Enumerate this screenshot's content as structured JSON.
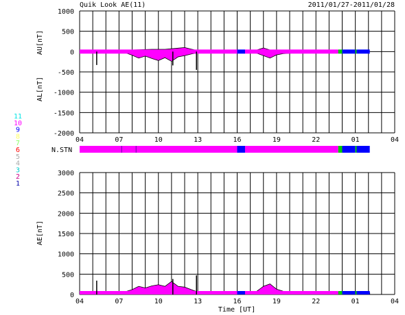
{
  "header": {
    "title": "Quik Look AE(11)",
    "date_range": "2011/01/27-2011/01/28"
  },
  "colors": {
    "magenta": "#ff00ff",
    "blue": "#0000ff",
    "green": "#00cc00",
    "black": "#000000"
  },
  "legend": {
    "items": [
      {
        "label": "11",
        "color": "#00e5e5"
      },
      {
        "label": "10",
        "color": "#ff00ff"
      },
      {
        "label": "9",
        "color": "#0000ff"
      },
      {
        "label": "8",
        "color": "#ffff66"
      },
      {
        "label": "7",
        "color": "#88ff66"
      },
      {
        "label": "6",
        "color": "#ff0000"
      },
      {
        "label": "5",
        "color": "#aaaaaa"
      },
      {
        "label": "4",
        "color": "#aaaaaa"
      },
      {
        "label": "3",
        "color": "#00cccc"
      },
      {
        "label": "2",
        "color": "#cc0088"
      },
      {
        "label": "1",
        "color": "#0000aa"
      }
    ]
  },
  "chart_data": [
    {
      "type": "area",
      "id": "au_al",
      "ylabel_top": "AU[nT]",
      "ylabel_bottom": "AL[nT]",
      "ylim": [
        -2000,
        1000
      ],
      "yticks": [
        1000,
        500,
        0,
        -500,
        -1000,
        -1500,
        -2000
      ],
      "xlim": [
        4,
        28
      ],
      "xtick_labels": [
        "04",
        "07",
        "10",
        "13",
        "16",
        "19",
        "22",
        "01",
        "04"
      ],
      "grid": true,
      "au": {
        "x": [
          4.0,
          6.0,
          7.5,
          8.5,
          9.5,
          10.5,
          11.0,
          11.5,
          12.0,
          12.5,
          13.0,
          14.0,
          16.0,
          17.5,
          18.0,
          18.5,
          19.5,
          21.0,
          22.0,
          23.5,
          25.0
        ],
        "y": [
          25,
          25,
          35,
          45,
          55,
          55,
          70,
          85,
          100,
          60,
          25,
          25,
          30,
          40,
          90,
          40,
          25,
          30,
          30,
          30,
          30
        ]
      },
      "al": {
        "x": [
          4.0,
          5.0,
          6.0,
          7.5,
          8.0,
          8.5,
          9.0,
          9.5,
          10.0,
          10.5,
          11.0,
          11.5,
          12.0,
          12.5,
          13.0,
          14.0,
          16.0,
          17.5,
          18.0,
          18.5,
          19.0,
          19.5,
          20.0,
          21.0,
          22.0,
          23.5,
          25.0
        ],
        "y": [
          -20,
          -25,
          -20,
          -30,
          -90,
          -160,
          -110,
          -170,
          -220,
          -150,
          -240,
          -130,
          -100,
          -60,
          -30,
          -20,
          -15,
          -40,
          -100,
          -160,
          -80,
          -50,
          -40,
          -30,
          -25,
          -20,
          -15
        ]
      },
      "spikes": [
        {
          "x": 5.3,
          "y": -330
        },
        {
          "x": 11.1,
          "y": -340
        },
        {
          "x": 12.9,
          "y": -450
        }
      ],
      "bands": [
        {
          "from": 4.0,
          "to": 16.0,
          "color": "#ff00ff"
        },
        {
          "from": 16.0,
          "to": 16.6,
          "color": "#0000ff"
        },
        {
          "from": 16.6,
          "to": 23.7,
          "color": "#ff00ff"
        },
        {
          "from": 23.7,
          "to": 24.0,
          "color": "#00cc00"
        },
        {
          "from": 24.0,
          "to": 25.0,
          "color": "#0000ff"
        },
        {
          "from": 25.0,
          "to": 25.1,
          "color": "#00cc00"
        },
        {
          "from": 25.1,
          "to": 26.1,
          "color": "#0000ff"
        }
      ]
    },
    {
      "type": "bar",
      "id": "nstn",
      "label": "N.STN",
      "segments": [
        {
          "from": 4.0,
          "to": 16.0,
          "color": "#ff00ff"
        },
        {
          "from": 16.0,
          "to": 16.6,
          "color": "#0000ff"
        },
        {
          "from": 16.6,
          "to": 23.7,
          "color": "#ff00ff"
        },
        {
          "from": 23.7,
          "to": 24.0,
          "color": "#00cc00"
        },
        {
          "from": 24.0,
          "to": 25.0,
          "color": "#0000ff"
        },
        {
          "from": 25.0,
          "to": 25.1,
          "color": "#00cc00"
        },
        {
          "from": 25.1,
          "to": 26.1,
          "color": "#0000ff"
        }
      ],
      "dividers": [
        7.2,
        8.3
      ]
    },
    {
      "type": "area",
      "id": "ae",
      "ylabel": "AE[nT]",
      "xlabel": "Time [UT]",
      "ylim": [
        0,
        3000
      ],
      "yticks": [
        3000,
        2500,
        2000,
        1500,
        1000,
        500,
        0
      ],
      "xlim": [
        4,
        28
      ],
      "xtick_labels": [
        "04",
        "07",
        "10",
        "13",
        "16",
        "19",
        "22",
        "01",
        "04"
      ],
      "grid": true,
      "series": {
        "x": [
          4.0,
          5.0,
          6.0,
          7.0,
          7.5,
          8.0,
          8.5,
          9.0,
          9.5,
          10.0,
          10.5,
          11.0,
          11.5,
          12.0,
          12.5,
          13.0,
          14.0,
          16.0,
          17.5,
          18.0,
          18.5,
          19.0,
          19.5,
          20.0,
          21.0,
          22.0,
          23.5,
          25.0,
          26.1
        ],
        "y": [
          40,
          50,
          50,
          60,
          70,
          120,
          200,
          160,
          210,
          240,
          200,
          320,
          200,
          180,
          120,
          60,
          50,
          50,
          80,
          200,
          260,
          130,
          80,
          70,
          60,
          55,
          50,
          45,
          40
        ]
      },
      "spikes": [
        {
          "x": 5.3,
          "y": 340
        },
        {
          "x": 11.1,
          "y": 380
        },
        {
          "x": 12.9,
          "y": 470
        }
      ],
      "bands": [
        {
          "from": 4.0,
          "to": 16.0,
          "color": "#ff00ff"
        },
        {
          "from": 16.0,
          "to": 16.6,
          "color": "#0000ff"
        },
        {
          "from": 16.6,
          "to": 23.7,
          "color": "#ff00ff"
        },
        {
          "from": 23.7,
          "to": 24.0,
          "color": "#00cc00"
        },
        {
          "from": 24.0,
          "to": 25.0,
          "color": "#0000ff"
        },
        {
          "from": 25.0,
          "to": 25.1,
          "color": "#00cc00"
        },
        {
          "from": 25.1,
          "to": 26.1,
          "color": "#0000ff"
        }
      ]
    }
  ]
}
